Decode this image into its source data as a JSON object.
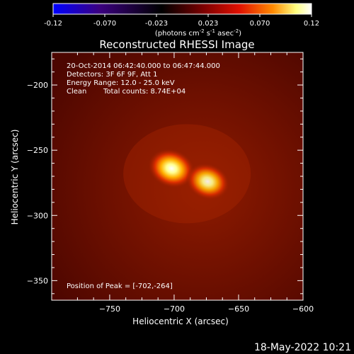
{
  "chart_data": {
    "type": "heatmap",
    "title": "Reconstructed RHESSI Image",
    "xlabel": "Heliocentric X (arcsec)",
    "ylabel": "Heliocentric Y (arcsec)",
    "xlim": [
      -795,
      -600
    ],
    "ylim": [
      -365,
      -175
    ],
    "x_ticks": [
      -750,
      -700,
      -650,
      -600
    ],
    "y_ticks": [
      -200,
      -250,
      -300,
      -350
    ],
    "colorbar": {
      "ticks": [
        "-0.12",
        "-0.070",
        "-0.023",
        "0.023",
        "0.070",
        "0.12"
      ],
      "range": [
        -0.12,
        0.12
      ],
      "units_html": "(photons cm<tspan baseline-shift='super' font-size='7'>-2</tspan> s<tspan baseline-shift='super' font-size='7'>-1</tspan> asec<tspan baseline-shift='super' font-size='7'>-2</tspan>)",
      "units": "(photons cm-2 s-1 asec-2)",
      "colors": [
        "#0000ff",
        "#3b0080",
        "#000000",
        "#7a0000",
        "#e01000",
        "#ff8a00",
        "#ffff80",
        "#ffffff"
      ]
    },
    "sources": [
      {
        "x": -702,
        "y": -264,
        "relative_intensity": 1.0
      },
      {
        "x": -674,
        "y": -274,
        "relative_intensity": 0.78
      }
    ],
    "peak": {
      "x": -702,
      "y": -264
    }
  },
  "annotations": {
    "time_range": "20-Oct-2014 06:42:40.000 to 06:47:44.000",
    "detectors": "Detectors: 3F 6F 9F, Att 1",
    "energy": "Energy Range: 12.0 - 25.0 keV",
    "algorithm": "Clean",
    "counts": "Total counts: 8.74E+04",
    "peak_label": "Position of Peak = [-702,-264]"
  },
  "footer": {
    "timestamp": "18-May-2022 10:21"
  }
}
